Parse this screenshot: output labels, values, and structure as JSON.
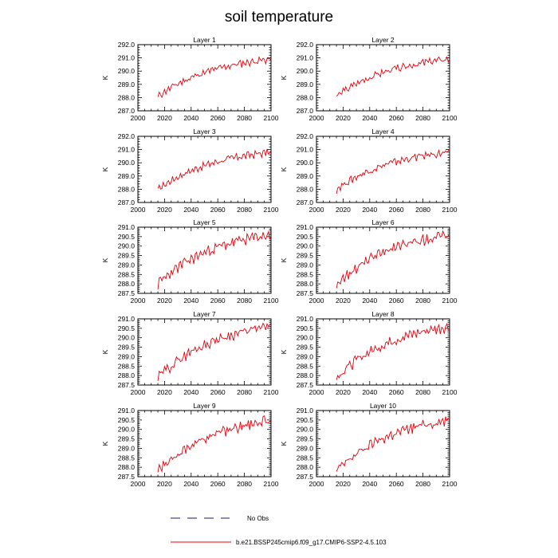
{
  "title": "soil temperature",
  "legend": [
    {
      "label": "No Obs",
      "style": "dashed",
      "color": "#1a1a66"
    },
    {
      "label": "b.e21.BSSP245cmip6.f09_g17.CMIP6-SSP2-4.5.103",
      "style": "solid",
      "color": "#e8000b"
    }
  ],
  "colors": {
    "series": "#e8000b",
    "axis": "#000000"
  },
  "chart_data": [
    {
      "type": "line",
      "title": "Layer 1",
      "ylabel": "K",
      "xlim": [
        2000,
        2100
      ],
      "ylim": [
        287.0,
        292.0
      ],
      "xticks": [
        "2000",
        "2020",
        "2040",
        "2060",
        "2080",
        "2100"
      ],
      "yticks": [
        "287.0",
        "288.0",
        "289.0",
        "290.0",
        "291.0",
        "292.0"
      ],
      "series": [
        {
          "x_start": 2015,
          "x_end": 2100,
          "start": 288.1,
          "end": 290.9,
          "values": []
        }
      ]
    },
    {
      "type": "line",
      "title": "Layer 2",
      "ylabel": "K",
      "xlim": [
        2000,
        2100
      ],
      "ylim": [
        287.0,
        292.0
      ],
      "xticks": [
        "2000",
        "2020",
        "2040",
        "2060",
        "2080",
        "2100"
      ],
      "yticks": [
        "287.0",
        "288.0",
        "289.0",
        "290.0",
        "291.0",
        "292.0"
      ],
      "series": [
        {
          "x_start": 2015,
          "x_end": 2100,
          "start": 288.1,
          "end": 290.9,
          "values": []
        }
      ]
    },
    {
      "type": "line",
      "title": "Layer 3",
      "ylabel": "K",
      "xlim": [
        2000,
        2100
      ],
      "ylim": [
        287.0,
        292.0
      ],
      "xticks": [
        "2000",
        "2020",
        "2040",
        "2060",
        "2080",
        "2100"
      ],
      "yticks": [
        "287.0",
        "288.0",
        "289.0",
        "290.0",
        "291.0",
        "292.0"
      ],
      "series": [
        {
          "x_start": 2015,
          "x_end": 2100,
          "start": 288.0,
          "end": 290.8,
          "values": []
        }
      ]
    },
    {
      "type": "line",
      "title": "Layer 4",
      "ylabel": "K",
      "xlim": [
        2000,
        2100
      ],
      "ylim": [
        287.0,
        292.0
      ],
      "xticks": [
        "2000",
        "2020",
        "2040",
        "2060",
        "2080",
        "2100"
      ],
      "yticks": [
        "287.0",
        "288.0",
        "289.0",
        "290.0",
        "291.0",
        "292.0"
      ],
      "series": [
        {
          "x_start": 2015,
          "x_end": 2100,
          "start": 288.0,
          "end": 290.8,
          "values": []
        }
      ]
    },
    {
      "type": "line",
      "title": "Layer 5",
      "ylabel": "K",
      "xlim": [
        2000,
        2100
      ],
      "ylim": [
        287.5,
        291.0
      ],
      "xticks": [
        "2000",
        "2020",
        "2040",
        "2060",
        "2080",
        "2100"
      ],
      "yticks": [
        "287.5",
        "288.0",
        "288.5",
        "289.0",
        "289.5",
        "290.0",
        "290.5",
        "291.0"
      ],
      "series": [
        {
          "x_start": 2015,
          "x_end": 2100,
          "start": 288.0,
          "end": 290.6,
          "values": []
        }
      ]
    },
    {
      "type": "line",
      "title": "Layer 6",
      "ylabel": "K",
      "xlim": [
        2000,
        2100
      ],
      "ylim": [
        287.5,
        291.0
      ],
      "xticks": [
        "2000",
        "2020",
        "2040",
        "2060",
        "2080",
        "2100"
      ],
      "yticks": [
        "287.5",
        "288.0",
        "288.5",
        "289.0",
        "289.5",
        "290.0",
        "290.5",
        "291.0"
      ],
      "series": [
        {
          "x_start": 2015,
          "x_end": 2100,
          "start": 288.0,
          "end": 290.6,
          "values": []
        }
      ]
    },
    {
      "type": "line",
      "title": "Layer 7",
      "ylabel": "K",
      "xlim": [
        2000,
        2100
      ],
      "ylim": [
        287.5,
        291.0
      ],
      "xticks": [
        "2000",
        "2020",
        "2040",
        "2060",
        "2080",
        "2100"
      ],
      "yticks": [
        "287.5",
        "288.0",
        "288.5",
        "289.0",
        "289.5",
        "290.0",
        "290.5",
        "291.0"
      ],
      "series": [
        {
          "x_start": 2015,
          "x_end": 2100,
          "start": 287.9,
          "end": 290.6,
          "values": []
        }
      ]
    },
    {
      "type": "line",
      "title": "Layer 8",
      "ylabel": "K",
      "xlim": [
        2000,
        2100
      ],
      "ylim": [
        287.5,
        291.0
      ],
      "xticks": [
        "2000",
        "2020",
        "2040",
        "2060",
        "2080",
        "2100"
      ],
      "yticks": [
        "287.5",
        "288.0",
        "288.5",
        "289.0",
        "289.5",
        "290.0",
        "290.5",
        "291.0"
      ],
      "series": [
        {
          "x_start": 2015,
          "x_end": 2100,
          "start": 287.9,
          "end": 290.6,
          "values": []
        }
      ]
    },
    {
      "type": "line",
      "title": "Layer 9",
      "ylabel": "K",
      "xlim": [
        2000,
        2100
      ],
      "ylim": [
        287.5,
        291.0
      ],
      "xticks": [
        "2000",
        "2020",
        "2040",
        "2060",
        "2080",
        "2100"
      ],
      "yticks": [
        "287.5",
        "288.0",
        "288.5",
        "289.0",
        "289.5",
        "290.0",
        "290.5",
        "291.0"
      ],
      "series": [
        {
          "x_start": 2015,
          "x_end": 2100,
          "start": 287.8,
          "end": 290.5,
          "values": []
        }
      ]
    },
    {
      "type": "line",
      "title": "Layer 10",
      "ylabel": "K",
      "xlim": [
        2000,
        2100
      ],
      "ylim": [
        287.5,
        291.0
      ],
      "xticks": [
        "2000",
        "2020",
        "2040",
        "2060",
        "2080",
        "2100"
      ],
      "yticks": [
        "287.5",
        "288.0",
        "288.5",
        "289.0",
        "289.5",
        "290.0",
        "290.5",
        "291.0"
      ],
      "series": [
        {
          "x_start": 2015,
          "x_end": 2100,
          "start": 287.8,
          "end": 290.5,
          "values": []
        }
      ]
    }
  ]
}
